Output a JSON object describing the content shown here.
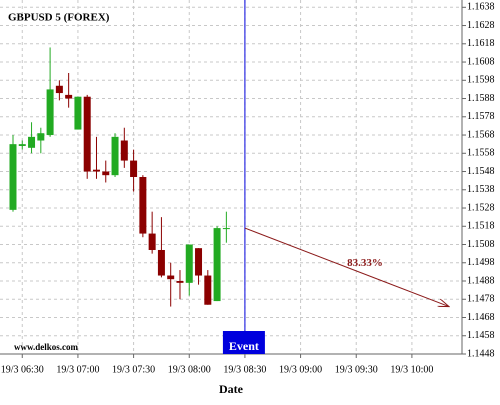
{
  "chart_data": {
    "type": "candlestick",
    "title": "GBPUSD 5 (FOREX)",
    "x_label": "Date",
    "watermark": "www.delkos.com",
    "x": [
      "19/3 06:25",
      "19/3 06:30",
      "19/3 06:35",
      "19/3 06:40",
      "19/3 06:45",
      "19/3 06:50",
      "19/3 06:55",
      "19/3 07:00",
      "19/3 07:05",
      "19/3 07:10",
      "19/3 07:15",
      "19/3 07:20",
      "19/3 07:25",
      "19/3 07:30",
      "19/3 07:35",
      "19/3 07:40",
      "19/3 07:45",
      "19/3 07:50",
      "19/3 07:55",
      "19/3 08:00",
      "19/3 08:05",
      "19/3 08:10",
      "19/3 08:15",
      "19/3 08:20"
    ],
    "open": [
      1.1527,
      1.1562,
      1.1561,
      1.1565,
      1.1568,
      1.1595,
      1.159,
      1.1571,
      1.1589,
      1.1549,
      1.1548,
      1.1546,
      1.1565,
      1.1554,
      1.1545,
      1.1514,
      1.1505,
      1.1491,
      1.1488,
      1.1487,
      1.1506,
      1.1491,
      1.1477,
      1.1517
    ],
    "high": [
      1.1568,
      1.1565,
      1.1575,
      1.1572,
      1.1616,
      1.1598,
      1.1602,
      1.1589,
      1.159,
      1.1567,
      1.1554,
      1.1569,
      1.1572,
      1.156,
      1.1546,
      1.1526,
      1.1523,
      1.1498,
      1.1494,
      1.1508,
      1.1506,
      1.1494,
      1.1518,
      1.1526
    ],
    "low": [
      1.1526,
      1.156,
      1.1558,
      1.1558,
      1.1567,
      1.1587,
      1.1583,
      1.1571,
      1.1544,
      1.1544,
      1.1542,
      1.1545,
      1.155,
      1.1537,
      1.1512,
      1.1503,
      1.149,
      1.1474,
      1.1478,
      1.148,
      1.1486,
      1.1475,
      1.1477,
      1.1509
    ],
    "close": [
      1.1563,
      1.1563,
      1.1567,
      1.1569,
      1.1593,
      1.1591,
      1.1588,
      1.1589,
      1.1548,
      1.1548,
      1.1546,
      1.1567,
      1.1554,
      1.1545,
      1.1514,
      1.1505,
      1.1491,
      1.1489,
      1.1487,
      1.1508,
      1.1491,
      1.1475,
      1.1517,
      1.1517
    ],
    "up_color": "#22aa22",
    "down_color": "#8b0000",
    "xlim": [
      "19/3 06:18",
      "19/3 10:27"
    ],
    "xticks": [
      "19/3 06:30",
      "19/3 07:00",
      "19/3 07:30",
      "19/3 08:00",
      "19/3 08:30",
      "19/3 09:00",
      "19/3 09:30",
      "19/3 10:00"
    ],
    "ylim": [
      1.1448,
      1.1642
    ],
    "yticks": [
      1.1448,
      1.1458,
      1.1468,
      1.1478,
      1.1488,
      1.1498,
      1.1508,
      1.1518,
      1.1528,
      1.1538,
      1.1548,
      1.1558,
      1.1568,
      1.1578,
      1.1588,
      1.1598,
      1.1608,
      1.1618,
      1.1628,
      1.1638
    ],
    "grid": true,
    "event": {
      "x": "19/3 08:30",
      "label": "Event",
      "color": "#0000dd"
    },
    "projection": {
      "x0": "19/3 08:30",
      "y0": 1.1517,
      "x1": "19/3 10:20",
      "y1": 1.1474,
      "label": "83.33%",
      "color": "#8b1a1a"
    }
  }
}
